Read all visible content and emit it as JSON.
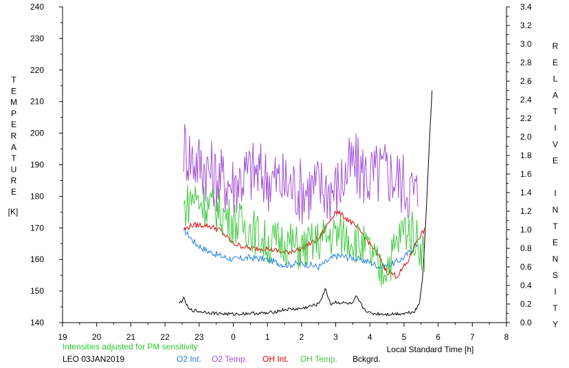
{
  "chart_data": {
    "type": "line",
    "xlabel": "Local Standard Time [h]",
    "ylabel_left": "TEMPERATURE",
    "ylabel_left_unit": "[K]",
    "ylabel_right": "RELATIVE INTENSITY",
    "note": "Intensities adjusted for PM sensitivity",
    "station": "LEO 03JAN2019",
    "xlim": [
      19,
      32
    ],
    "x_ticks": [
      19,
      20,
      21,
      22,
      23,
      24,
      25,
      26,
      27,
      28,
      29,
      30,
      31,
      32
    ],
    "x_tick_labels": [
      "19",
      "20",
      "21",
      "22",
      "23",
      "0",
      "1",
      "2",
      "3",
      "4",
      "5",
      "6",
      "7",
      "8"
    ],
    "ylim_left": [
      140,
      240
    ],
    "y_left_ticks": [
      "140",
      "150",
      "160",
      "170",
      "180",
      "190",
      "200",
      "210",
      "220",
      "230",
      "240"
    ],
    "ylim_right": [
      0,
      3.4
    ],
    "y_right_ticks": [
      "0.0",
      "0.2",
      "0.4",
      "0.6",
      "0.8",
      "1.0",
      "1.2",
      "1.4",
      "1.6",
      "1.8",
      "2.0",
      "2.2",
      "2.4",
      "2.6",
      "2.8",
      "3.0",
      "3.2",
      "3.4"
    ],
    "series": [
      {
        "name": "O2 Int.",
        "color": "#1f7fe0",
        "axis": "right",
        "x": [
          22.55,
          22.9,
          23.2,
          23.6,
          24.0,
          24.5,
          25.0,
          25.5,
          26.0,
          26.5,
          27.0,
          27.5,
          28.0,
          28.3,
          28.6,
          29.0,
          29.3,
          29.4
        ],
        "y": [
          1.0,
          0.85,
          0.78,
          0.72,
          0.68,
          0.7,
          0.68,
          0.62,
          0.64,
          0.6,
          0.72,
          0.7,
          0.65,
          0.6,
          0.62,
          0.7,
          0.82,
          0.85
        ]
      },
      {
        "name": "O2 Temp.",
        "color": "#a24fd6",
        "axis": "left",
        "x": [
          22.55,
          22.8,
          23.1,
          23.5,
          24.0,
          24.5,
          25.0,
          25.5,
          26.0,
          26.5,
          27.0,
          27.5,
          28.0,
          28.5,
          29.0,
          29.4
        ],
        "y": [
          196,
          192,
          190,
          186,
          184,
          188,
          186,
          184,
          182,
          183,
          182,
          190,
          186,
          188,
          184,
          180
        ]
      },
      {
        "name": "OH Int.",
        "color": "#e00000",
        "axis": "right",
        "x": [
          22.55,
          22.8,
          23.2,
          23.6,
          24.0,
          24.5,
          25.0,
          25.5,
          26.0,
          26.5,
          27.0,
          27.4,
          27.8,
          28.2,
          28.5,
          28.8,
          29.1,
          29.4,
          29.6
        ],
        "y": [
          1.0,
          1.05,
          1.05,
          1.0,
          0.85,
          0.8,
          0.8,
          0.75,
          0.8,
          0.9,
          1.2,
          1.1,
          0.95,
          0.75,
          0.55,
          0.5,
          0.65,
          0.9,
          1.0
        ]
      },
      {
        "name": "OH Temp.",
        "color": "#3cc83c",
        "axis": "left",
        "x": [
          22.55,
          22.8,
          23.1,
          23.5,
          24.0,
          24.5,
          25.0,
          25.5,
          26.0,
          26.5,
          27.0,
          27.5,
          28.0,
          28.3,
          28.6,
          29.0,
          29.3,
          29.6
        ],
        "y": [
          176,
          180,
          178,
          176,
          172,
          170,
          165,
          166,
          163,
          166,
          168,
          167,
          162,
          156,
          160,
          170,
          168,
          162
        ]
      },
      {
        "name": "Bckgrd.",
        "color": "#000000",
        "axis": "right",
        "x": [
          22.4,
          22.55,
          22.7,
          23.0,
          23.5,
          24.0,
          24.5,
          25.0,
          25.5,
          26.0,
          26.5,
          26.7,
          26.85,
          27.0,
          27.5,
          27.6,
          27.8,
          28.0,
          28.5,
          29.0,
          29.3,
          29.45,
          29.55,
          29.65,
          29.75,
          29.82
        ],
        "y": [
          0.2,
          0.26,
          0.14,
          0.12,
          0.1,
          0.09,
          0.1,
          0.1,
          0.14,
          0.15,
          0.2,
          0.36,
          0.2,
          0.22,
          0.2,
          0.28,
          0.16,
          0.1,
          0.09,
          0.1,
          0.12,
          0.2,
          0.5,
          1.2,
          2.0,
          2.5
        ]
      }
    ]
  }
}
